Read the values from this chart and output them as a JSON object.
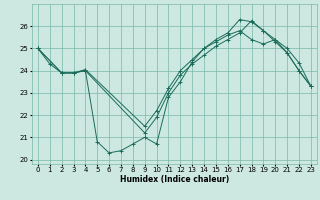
{
  "xlabel": "Humidex (Indice chaleur)",
  "bg_color": "#cce8e0",
  "grid_color": "#7ab8a8",
  "line_color": "#1a6b5a",
  "xlim": [
    -0.5,
    23.5
  ],
  "ylim": [
    19.8,
    27.0
  ],
  "xticks": [
    0,
    1,
    2,
    3,
    4,
    5,
    6,
    7,
    8,
    9,
    10,
    11,
    12,
    13,
    14,
    15,
    16,
    17,
    18,
    19,
    20,
    21,
    22,
    23
  ],
  "yticks": [
    20,
    21,
    22,
    23,
    24,
    25,
    26
  ],
  "line1_x": [
    0,
    1,
    2,
    3,
    4,
    5,
    6,
    7,
    8,
    9,
    10,
    11,
    12,
    13,
    14,
    15,
    16,
    17,
    18,
    19,
    20,
    21,
    22,
    23
  ],
  "line1_y": [
    25.0,
    24.3,
    23.9,
    23.9,
    24.0,
    20.8,
    20.3,
    20.4,
    20.7,
    21.0,
    20.7,
    22.8,
    23.5,
    24.4,
    25.0,
    25.4,
    25.7,
    26.3,
    26.2,
    25.8,
    25.3,
    24.8,
    24.0,
    23.3
  ],
  "line2_x": [
    0,
    2,
    3,
    4,
    9,
    10,
    11,
    12,
    13,
    14,
    15,
    16,
    17,
    18,
    19,
    20,
    21,
    22,
    23
  ],
  "line2_y": [
    25.0,
    23.9,
    23.9,
    24.0,
    21.2,
    21.9,
    23.0,
    23.8,
    24.3,
    24.7,
    25.1,
    25.4,
    25.7,
    26.25,
    25.8,
    25.4,
    24.8,
    24.0,
    23.3
  ],
  "line3_x": [
    0,
    2,
    3,
    4,
    9,
    10,
    11,
    12,
    13,
    14,
    15,
    16,
    17,
    18,
    19,
    20,
    21,
    22,
    23
  ],
  "line3_y": [
    25.0,
    23.9,
    23.9,
    24.05,
    21.5,
    22.2,
    23.2,
    24.0,
    24.5,
    25.0,
    25.3,
    25.6,
    25.8,
    25.4,
    25.2,
    25.4,
    25.0,
    24.35,
    23.3
  ]
}
